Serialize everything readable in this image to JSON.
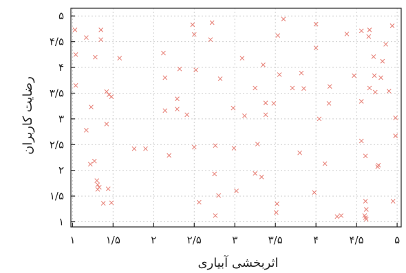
{
  "chart_data": {
    "type": "scatter",
    "title": "",
    "xlabel": "اثربخشی آبیاری",
    "ylabel": "رضایت کاربران",
    "xlim": [
      0.98,
      5.05
    ],
    "ylim": [
      0.9,
      5.15
    ],
    "x_ticks": [
      {
        "value": 1,
        "label": "۱"
      },
      {
        "value": 1.5,
        "label": "۱/۵"
      },
      {
        "value": 2,
        "label": "۲"
      },
      {
        "value": 2.5,
        "label": "۲/۵"
      },
      {
        "value": 3,
        "label": "۳"
      },
      {
        "value": 3.5,
        "label": "۳/۵"
      },
      {
        "value": 4,
        "label": "۴"
      },
      {
        "value": 4.5,
        "label": "۴/۵"
      },
      {
        "value": 5,
        "label": "۵"
      }
    ],
    "y_ticks": [
      {
        "value": 1,
        "label": "۱"
      },
      {
        "value": 1.5,
        "label": "۱/۵"
      },
      {
        "value": 2,
        "label": "۲"
      },
      {
        "value": 2.5,
        "label": "۲/۵"
      },
      {
        "value": 3,
        "label": "۳"
      },
      {
        "value": 3.5,
        "label": "۳/۵"
      },
      {
        "value": 4,
        "label": "۴"
      },
      {
        "value": 4.5,
        "label": "۴/۵"
      },
      {
        "value": 5,
        "label": "۵"
      }
    ],
    "grid": true,
    "marker": "x",
    "marker_color": "#e8857c",
    "series": [
      {
        "points": [
          [
            1.03,
            4.73
          ],
          [
            1.04,
            4.25
          ],
          [
            1.04,
            3.65
          ],
          [
            1.17,
            4.58
          ],
          [
            1.17,
            2.78
          ],
          [
            1.23,
            3.23
          ],
          [
            1.22,
            2.12
          ],
          [
            1.27,
            2.18
          ],
          [
            1.28,
            4.2
          ],
          [
            1.3,
            1.8
          ],
          [
            1.31,
            1.72
          ],
          [
            1.31,
            1.63
          ],
          [
            1.33,
            1.67
          ],
          [
            1.35,
            4.54
          ],
          [
            1.35,
            4.73
          ],
          [
            1.38,
            1.36
          ],
          [
            1.42,
            2.9
          ],
          [
            1.42,
            3.53
          ],
          [
            1.45,
            3.47
          ],
          [
            1.48,
            3.43
          ],
          [
            1.44,
            1.64
          ],
          [
            1.48,
            1.37
          ],
          [
            1.58,
            4.18
          ],
          [
            1.76,
            2.42
          ],
          [
            1.9,
            2.42
          ],
          [
            2.12,
            4.28
          ],
          [
            2.14,
            3.8
          ],
          [
            2.14,
            3.16
          ],
          [
            2.19,
            2.29
          ],
          [
            2.29,
            3.39
          ],
          [
            2.29,
            3.19
          ],
          [
            2.32,
            3.97
          ],
          [
            2.41,
            3.08
          ],
          [
            2.48,
            4.83
          ],
          [
            2.5,
            4.64
          ],
          [
            2.52,
            3.95
          ],
          [
            2.5,
            2.45
          ],
          [
            2.56,
            1.38
          ],
          [
            2.7,
            4.54
          ],
          [
            2.72,
            4.87
          ],
          [
            2.76,
            2.48
          ],
          [
            2.75,
            1.93
          ],
          [
            2.76,
            1.12
          ],
          [
            2.8,
            1.51
          ],
          [
            2.82,
            3.78
          ],
          [
            2.98,
            3.21
          ],
          [
            2.99,
            2.43
          ],
          [
            3.02,
            1.6
          ],
          [
            3.09,
            4.18
          ],
          [
            3.12,
            3.06
          ],
          [
            3.25,
            3.6
          ],
          [
            3.25,
            1.94
          ],
          [
            3.28,
            2.51
          ],
          [
            3.33,
            1.87
          ],
          [
            3.35,
            4.05
          ],
          [
            3.38,
            3.31
          ],
          [
            3.38,
            3.08
          ],
          [
            3.48,
            3.3
          ],
          [
            3.51,
            1.18
          ],
          [
            3.52,
            1.35
          ],
          [
            3.53,
            4.62
          ],
          [
            3.55,
            3.86
          ],
          [
            3.6,
            4.94
          ],
          [
            3.71,
            3.6
          ],
          [
            3.8,
            2.34
          ],
          [
            3.82,
            3.89
          ],
          [
            3.85,
            3.59
          ],
          [
            3.98,
            1.57
          ],
          [
            4.0,
            4.84
          ],
          [
            4.0,
            4.38
          ],
          [
            4.04,
            3.0
          ],
          [
            4.11,
            2.13
          ],
          [
            4.16,
            3.3
          ],
          [
            4.17,
            3.63
          ],
          [
            4.26,
            1.1
          ],
          [
            4.31,
            1.12
          ],
          [
            4.38,
            4.65
          ],
          [
            4.47,
            3.84
          ],
          [
            4.56,
            4.71
          ],
          [
            4.56,
            3.34
          ],
          [
            4.56,
            2.57
          ],
          [
            4.6,
            1.12
          ],
          [
            4.61,
            1.08
          ],
          [
            4.61,
            1.4
          ],
          [
            4.62,
            1.24
          ],
          [
            4.62,
            1.05
          ],
          [
            4.61,
            2.28
          ],
          [
            4.65,
            4.6
          ],
          [
            4.66,
            4.73
          ],
          [
            4.66,
            3.6
          ],
          [
            4.71,
            4.21
          ],
          [
            4.73,
            3.52
          ],
          [
            4.72,
            3.84
          ],
          [
            4.76,
            2.07
          ],
          [
            4.77,
            2.1
          ],
          [
            4.8,
            3.8
          ],
          [
            4.82,
            4.12
          ],
          [
            4.86,
            4.45
          ],
          [
            4.9,
            3.54
          ],
          [
            4.94,
            4.81
          ],
          [
            4.98,
            3.02
          ],
          [
            4.98,
            2.67
          ],
          [
            4.95,
            1.4
          ]
        ]
      }
    ]
  }
}
